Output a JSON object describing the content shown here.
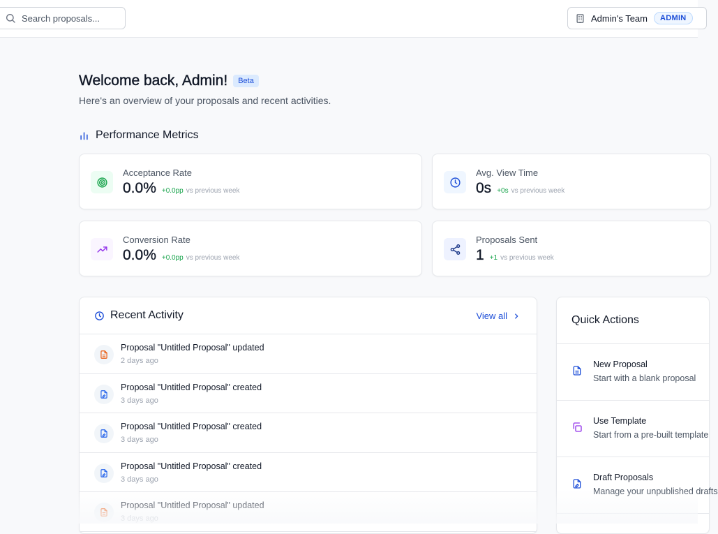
{
  "topbar": {
    "search_placeholder": "Search proposals...",
    "team_name": "Admin's Team",
    "role_badge": "ADMIN"
  },
  "header": {
    "welcome": "Welcome back, Admin!",
    "beta": "Beta",
    "subtitle": "Here's an overview of your proposals and recent activities."
  },
  "metrics": {
    "title": "Performance Metrics",
    "cards": [
      {
        "label": "Acceptance Rate",
        "value": "0.0%",
        "delta": "+0.0pp",
        "vs": "vs previous week",
        "icon": "target-icon",
        "color": "#16a34a",
        "bg": "#ecfdf3"
      },
      {
        "label": "Avg. View Time",
        "value": "0s",
        "delta": "+0s",
        "vs": "vs previous week",
        "icon": "clock-icon",
        "color": "#1d4ed8",
        "bg": "#eff6ff"
      },
      {
        "label": "Conversion Rate",
        "value": "0.0%",
        "delta": "+0.0pp",
        "vs": "vs previous week",
        "icon": "trending-up-icon",
        "color": "#9333ea",
        "bg": "#faf5ff"
      },
      {
        "label": "Proposals Sent",
        "value": "1",
        "delta": "+1",
        "vs": "vs previous week",
        "icon": "share-icon",
        "color": "#1e3a8a",
        "bg": "#eef2ff"
      }
    ]
  },
  "activity": {
    "title": "Recent Activity",
    "view_all": "View all",
    "items": [
      {
        "text": "Proposal \"Untitled Proposal\" updated",
        "time": "2 days ago",
        "icon": "document-icon"
      },
      {
        "text": "Proposal \"Untitled Proposal\" created",
        "time": "3 days ago",
        "icon": "file-edit-icon"
      },
      {
        "text": "Proposal \"Untitled Proposal\" created",
        "time": "3 days ago",
        "icon": "file-edit-icon"
      },
      {
        "text": "Proposal \"Untitled Proposal\" created",
        "time": "3 days ago",
        "icon": "file-edit-icon"
      },
      {
        "text": "Proposal \"Untitled Proposal\" updated",
        "time": "3 days ago",
        "icon": "document-icon"
      }
    ]
  },
  "quick_actions": {
    "title": "Quick Actions",
    "items": [
      {
        "title": "New Proposal",
        "desc": "Start with a blank proposal",
        "icon": "document-icon"
      },
      {
        "title": "Use Template",
        "desc": "Start from a pre-built template",
        "icon": "copy-icon"
      },
      {
        "title": "Draft Proposals",
        "desc": "Manage your unpublished drafts",
        "icon": "file-edit-icon"
      }
    ]
  }
}
